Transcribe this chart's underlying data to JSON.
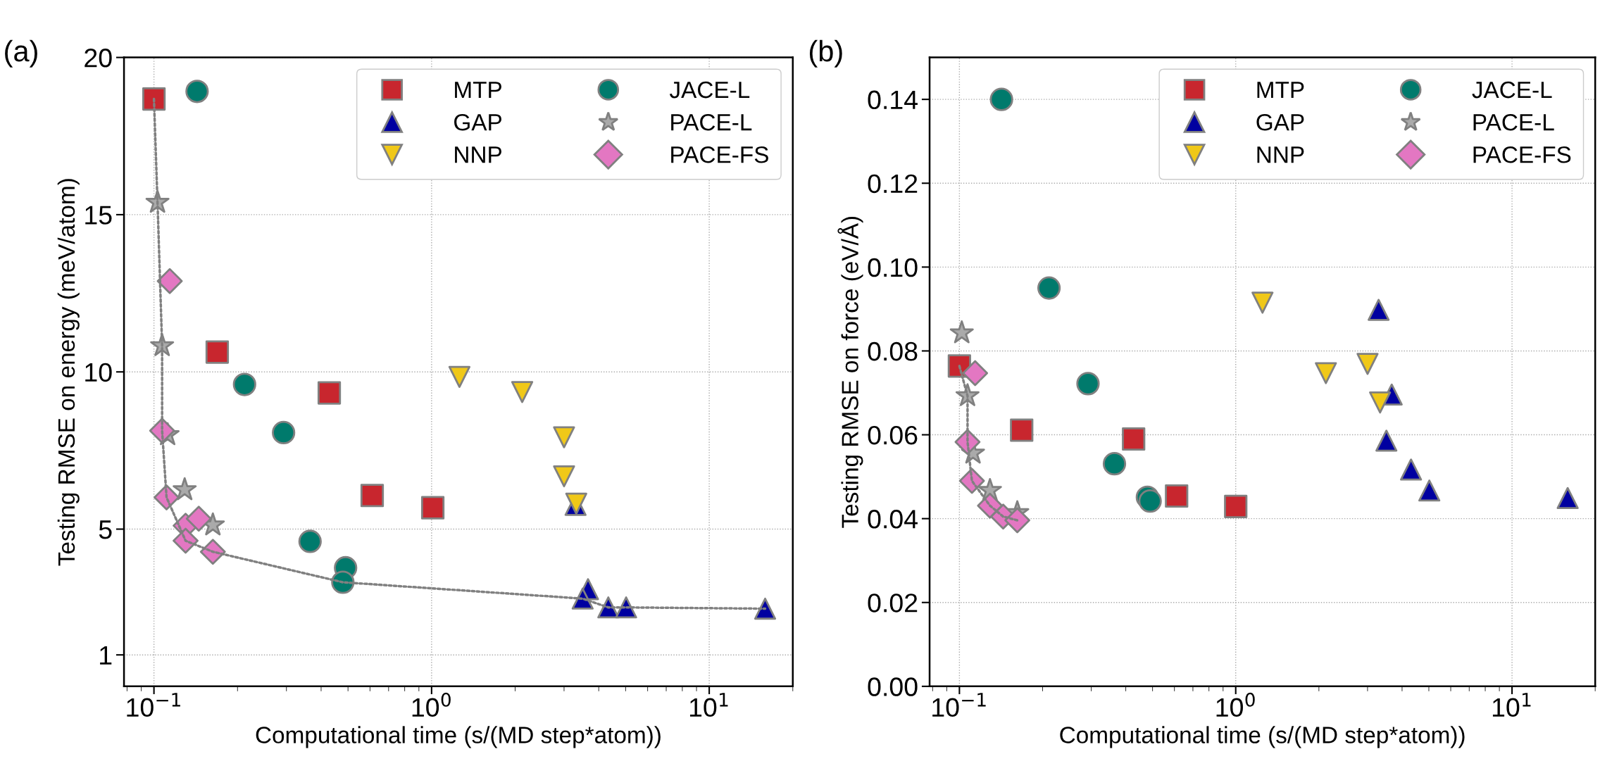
{
  "chart_data": [
    {
      "type": "scatter",
      "annotations": [
        "(a)"
      ],
      "xlabel": "Computational time (s/(MD step*atom))",
      "ylabel": "Testing RMSE on energy (meV/atom)",
      "log": "x",
      "grid": true,
      "legend": "top right",
      "xlim": [
        0.078,
        20
      ],
      "xticks": [
        {
          "value": 0.1,
          "label": "10$^{−1}$"
        },
        {
          "value": 1,
          "label": "10$^{0}$"
        },
        {
          "value": 10,
          "label": "10$^{1}$"
        }
      ],
      "ylim": [
        0,
        20
      ],
      "yticks": [
        1,
        5,
        10,
        15,
        20
      ],
      "series": [
        {
          "type": "line",
          "color": "#808080",
          "line_style": "dotted",
          "marker": "none",
          "x": [
            0.1,
            0.103,
            0.107,
            0.107,
            0.111,
            0.13,
            0.163,
            0.479,
            3.5,
            4.33,
            5.02,
            15.9
          ],
          "values": [
            18.68,
            15.39,
            10.83,
            8.13,
            6.01,
            4.63,
            4.28,
            3.31,
            2.79,
            2.51,
            2.51,
            2.47
          ]
        },
        {
          "name": "MTP",
          "color": "#c8262e",
          "marker": "square",
          "x": [
            0.1,
            0.169,
            0.428,
            0.611,
            1.01
          ],
          "values": [
            18.68,
            10.63,
            9.33,
            6.07,
            5.68
          ]
        },
        {
          "name": "GAP",
          "color": "#0000a0",
          "marker": "triangle",
          "x": [
            3.3,
            3.66,
            3.5,
            4.33,
            5.02,
            15.9
          ],
          "values": [
            5.77,
            3.09,
            2.79,
            2.51,
            2.51,
            2.47
          ]
        },
        {
          "name": "NNP",
          "color": "#f0c818",
          "marker": "triangle_down",
          "x": [
            1.26,
            2.12,
            3.0,
            3.0,
            3.32
          ],
          "values": [
            9.84,
            9.36,
            7.92,
            6.68,
            5.81
          ]
        },
        {
          "name": "JACE-L",
          "color": "#007a6c",
          "marker": "circle",
          "x": [
            0.143,
            0.212,
            0.293,
            0.365,
            0.49,
            0.479
          ],
          "values": [
            18.92,
            9.6,
            8.07,
            4.61,
            3.77,
            3.31
          ]
        },
        {
          "name": "PACE-L",
          "color": "#aaaaaa",
          "marker": "star",
          "x": [
            0.103,
            0.107,
            0.112,
            0.129,
            0.163
          ],
          "values": [
            15.39,
            10.83,
            8.0,
            6.25,
            5.13
          ]
        },
        {
          "name": "PACE-FS",
          "color": "#e377c2",
          "marker": "diamond",
          "x": [
            0.114,
            0.107,
            0.111,
            0.13,
            0.145,
            0.13,
            0.163
          ],
          "values": [
            12.89,
            8.13,
            6.01,
            5.11,
            5.33,
            4.63,
            4.28
          ]
        }
      ]
    },
    {
      "type": "scatter",
      "annotations": [
        "(b)"
      ],
      "xlabel": "Computational time (s/(MD step*atom))",
      "ylabel": "Testing RMSE on force (eV/Å)",
      "log": "x",
      "grid": true,
      "legend": "top right",
      "xlim": [
        0.078,
        20
      ],
      "xticks": [
        {
          "value": 0.1,
          "label": "10$^{−1}$"
        },
        {
          "value": 1,
          "label": "10$^{0}$"
        },
        {
          "value": 10,
          "label": "10$^{1}$"
        }
      ],
      "ylim": [
        0,
        0.15
      ],
      "yticks": [
        {
          "value": 0,
          "label": "0.00"
        },
        {
          "value": 0.02,
          "label": "0.02"
        },
        {
          "value": 0.04,
          "label": "0.04"
        },
        {
          "value": 0.06,
          "label": "0.06"
        },
        {
          "value": 0.08,
          "label": "0.08"
        },
        {
          "value": 0.1,
          "label": "0.10"
        },
        {
          "value": 0.12,
          "label": "0.12"
        },
        {
          "value": 0.14,
          "label": "0.14"
        }
      ],
      "series": [
        {
          "type": "line",
          "color": "#808080",
          "line_style": "dotted",
          "marker": "none",
          "x": [
            0.1,
            0.107,
            0.107,
            0.111,
            0.129,
            0.144,
            0.162
          ],
          "values": [
            0.0764,
            0.0693,
            0.0583,
            0.049,
            0.0431,
            0.0405,
            0.0396
          ]
        },
        {
          "name": "MTP",
          "color": "#c8262e",
          "marker": "square",
          "x": [
            0.1,
            0.168,
            0.427,
            0.611,
            1.0
          ],
          "values": [
            0.0764,
            0.0611,
            0.059,
            0.0454,
            0.0429
          ]
        },
        {
          "name": "GAP",
          "color": "#0000a0",
          "marker": "triangle",
          "x": [
            3.29,
            3.67,
            3.51,
            4.31,
            5.02,
            15.9
          ],
          "values": [
            0.0898,
            0.0696,
            0.0586,
            0.0517,
            0.0467,
            0.0449
          ]
        },
        {
          "name": "NNP",
          "color": "#f0c818",
          "marker": "triangle_down",
          "x": [
            1.25,
            2.12,
            3.0,
            3.33
          ],
          "values": [
            0.0915,
            0.0747,
            0.0769,
            0.0677
          ]
        },
        {
          "name": "JACE-L",
          "color": "#007a6c",
          "marker": "circle",
          "x": [
            0.142,
            0.211,
            0.292,
            0.364,
            0.479,
            0.49
          ],
          "values": [
            0.14,
            0.095,
            0.0722,
            0.0531,
            0.0451,
            0.0442
          ]
        },
        {
          "name": "PACE-L",
          "color": "#aaaaaa",
          "marker": "star",
          "x": [
            0.102,
            0.107,
            0.112,
            0.129,
            0.162
          ],
          "values": [
            0.0843,
            0.0693,
            0.0556,
            0.0467,
            0.0414
          ]
        },
        {
          "name": "PACE-FS",
          "color": "#e377c2",
          "marker": "diamond",
          "x": [
            0.114,
            0.107,
            0.111,
            0.129,
            0.144,
            0.162
          ],
          "values": [
            0.0747,
            0.0583,
            0.049,
            0.0431,
            0.0405,
            0.0396
          ]
        }
      ]
    }
  ]
}
